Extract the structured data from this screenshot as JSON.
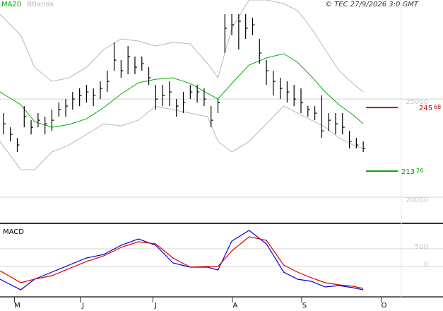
{
  "chart_data": [
    {
      "type": "ohlc",
      "annotation": "© TEC 27/9/2026 3:0 GMT",
      "xlim": [
        0,
        116
      ],
      "ylim": [
        18670,
        30040
      ],
      "yticks": [
        25000,
        20000
      ],
      "grid": true,
      "bars": {
        "color": "#000000",
        "x": [
          1,
          3,
          5,
          7,
          9,
          11,
          13,
          15,
          17,
          19,
          21,
          23,
          25,
          27,
          29,
          31,
          33,
          35,
          37,
          39,
          41,
          43,
          45,
          47,
          49,
          51,
          53,
          55,
          57,
          59,
          61,
          63,
          65,
          67,
          69,
          71,
          73,
          75,
          77,
          79,
          81,
          83,
          85,
          87,
          89,
          91,
          93,
          95,
          97,
          99,
          101,
          103,
          105
        ],
        "high": [
          24280,
          23560,
          23020,
          24640,
          23920,
          24280,
          24100,
          24460,
          24820,
          25000,
          25360,
          25540,
          25720,
          25540,
          25900,
          26440,
          27880,
          26980,
          27700,
          27160,
          27160,
          26620,
          25720,
          25720,
          25900,
          25000,
          25360,
          25720,
          25720,
          25540,
          24640,
          25000,
          29320,
          29320,
          29320,
          29320,
          29140,
          28060,
          26980,
          26440,
          26080,
          25900,
          25720,
          25540,
          24640,
          24640,
          25180,
          24280,
          24280,
          24280,
          23380,
          23020,
          22840
        ],
        "low": [
          23200,
          22840,
          22300,
          23560,
          23200,
          23560,
          23200,
          23380,
          24100,
          24100,
          24460,
          24640,
          24820,
          24640,
          25000,
          25360,
          26440,
          26080,
          26260,
          26260,
          26440,
          25720,
          24460,
          24640,
          24640,
          24100,
          24280,
          25000,
          24820,
          24640,
          23560,
          24280,
          27340,
          28240,
          27520,
          28060,
          28240,
          26800,
          25720,
          25180,
          25000,
          24820,
          24640,
          24280,
          24100,
          23920,
          23020,
          23380,
          23200,
          23200,
          22480,
          22480,
          22300
        ],
        "close": [
          23740,
          23200,
          22660,
          24100,
          23560,
          23920,
          23740,
          23920,
          24460,
          24640,
          25000,
          25180,
          25360,
          25180,
          25540,
          25900,
          26980,
          26440,
          27160,
          26620,
          26800,
          26080,
          25000,
          25180,
          25360,
          24640,
          24820,
          25360,
          25360,
          25000,
          23920,
          24820,
          28600,
          28780,
          28960,
          28600,
          28780,
          27340,
          26440,
          25900,
          25540,
          25360,
          25000,
          24820,
          24460,
          24280,
          23380,
          23920,
          23740,
          23560,
          22840,
          22660,
          22480
        ]
      },
      "line_x": [
        0,
        6,
        10,
        15,
        20,
        25,
        30,
        35,
        40,
        45,
        50,
        55,
        60,
        63,
        67,
        72,
        77,
        82,
        86,
        90,
        94,
        98,
        102,
        105
      ],
      "series": [
        {
          "name": "MA20",
          "color": "#00b000",
          "values": [
            25360,
            24712,
            23848,
            23560,
            23704,
            23992,
            24568,
            25252,
            25828,
            26008,
            26080,
            25792,
            25288,
            25000,
            25792,
            26728,
            27088,
            27304,
            26872,
            26152,
            25360,
            24712,
            24208,
            23740
          ]
        },
        {
          "name": "BBands",
          "color": "#b8b8b8",
          "upper": [
            29320,
            28240,
            26620,
            25900,
            26080,
            26620,
            27520,
            28060,
            27952,
            27700,
            27880,
            27808,
            26800,
            26080,
            28600,
            30040,
            30040,
            29860,
            29500,
            28600,
            27520,
            26440,
            25792,
            25360
          ],
          "lower": [
            22840,
            21400,
            21400,
            22300,
            22660,
            23200,
            23740,
            23632,
            23920,
            24640,
            24460,
            24280,
            24100,
            22840,
            22300,
            22840,
            23740,
            24640,
            24280,
            23920,
            23560,
            23020,
            22660,
            22480
          ]
        }
      ],
      "levels": [
        {
          "value": 24568,
          "label": "245",
          "label_small": "68",
          "color": "#cc0000"
        },
        {
          "value": 21326,
          "label": "213",
          "label_small": "26",
          "color": "#00a000"
        }
      ]
    },
    {
      "type": "line",
      "title": "MACD",
      "xlim": [
        0,
        116
      ],
      "x": [
        0,
        6,
        10,
        15,
        20,
        25,
        30,
        35,
        40,
        45,
        50,
        55,
        60,
        63,
        67,
        72,
        77,
        82,
        86,
        90,
        94,
        98,
        102,
        105
      ],
      "xticks": [
        {
          "value": 5,
          "label": "M"
        },
        {
          "value": 24,
          "label": "J"
        },
        {
          "value": 45,
          "label": "J"
        },
        {
          "value": 68,
          "label": "A"
        },
        {
          "value": 88,
          "label": "S"
        },
        {
          "value": 111,
          "label": "O"
        }
      ],
      "ylim": [
        -860,
        1180
      ],
      "yticks": [
        500,
        0
      ],
      "grid": true,
      "series": [
        {
          "name": "MACD",
          "color": "#0000dd",
          "values": [
            -360,
            -660,
            -360,
            -160,
            40,
            240,
            340,
            600,
            780,
            600,
            100,
            -20,
            -20,
            -100,
            720,
            1020,
            640,
            -160,
            -360,
            -420,
            -580,
            -540,
            -600,
            -660
          ]
        },
        {
          "name": "Signal",
          "color": "#dd0000",
          "values": [
            -120,
            -460,
            -360,
            -260,
            -60,
            140,
            300,
            540,
            700,
            640,
            240,
            -20,
            0,
            0,
            440,
            840,
            740,
            40,
            -160,
            -320,
            -460,
            -520,
            -560,
            -620
          ]
        }
      ]
    }
  ]
}
